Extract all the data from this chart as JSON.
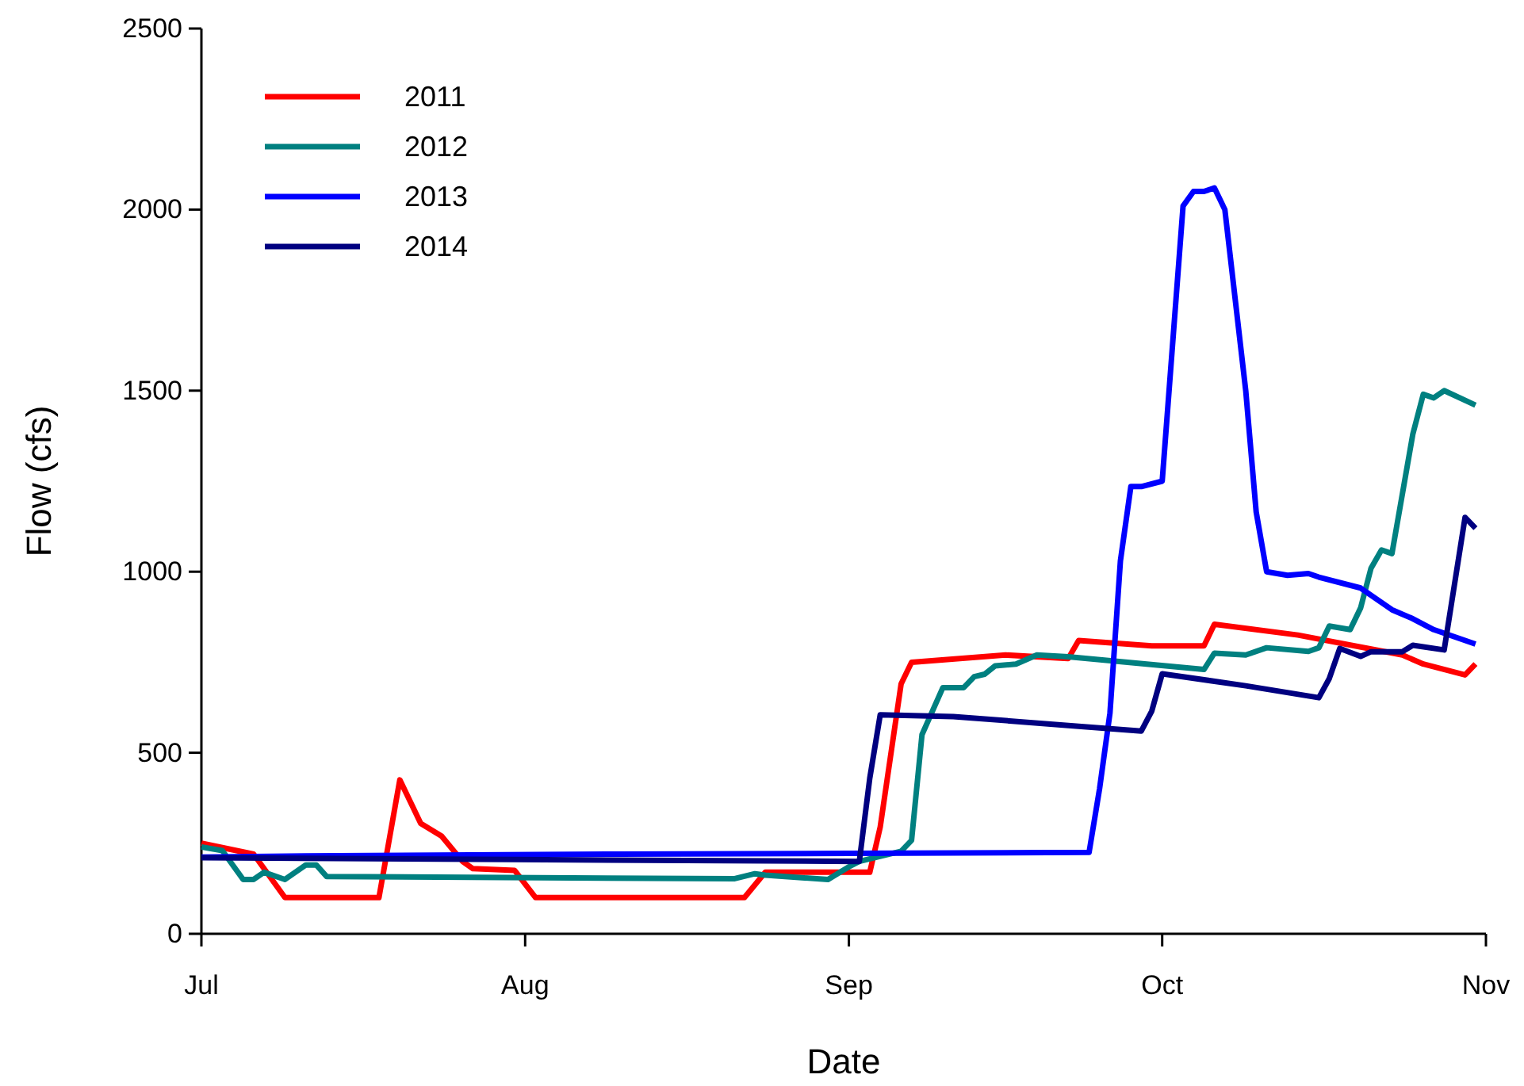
{
  "chart_data": {
    "type": "line",
    "xlabel": "Date",
    "ylabel": "Flow (cfs)",
    "xlim": [
      "--07-01",
      "--11-01"
    ],
    "xticks": [
      {
        "value": "--07-01",
        "label": "Jul"
      },
      {
        "value": "--08-01",
        "label": "Aug"
      },
      {
        "value": "--09-01",
        "label": "Sep"
      },
      {
        "value": "--10-01",
        "label": "Oct"
      },
      {
        "value": "--11-01",
        "label": "Nov"
      }
    ],
    "ylim": [
      0,
      2500
    ],
    "yticks": [
      0,
      500,
      1000,
      1500,
      2000,
      2500
    ],
    "grid": false,
    "legend": "top left",
    "marker": "none",
    "line_style": "solid",
    "series": [
      {
        "name": "2011",
        "color": "#ff0000",
        "x": [
          "--07-01",
          "--07-06",
          "--07-09",
          "--07-18",
          "--07-20",
          "--07-22",
          "--07-24",
          "--07-26",
          "--07-27",
          "--07-31",
          "--08-02",
          "--08-22",
          "--08-24",
          "--09-03",
          "--09-04",
          "--09-06",
          "--09-07",
          "--09-16",
          "--09-22",
          "--09-23",
          "--09-30",
          "--10-05",
          "--10-06",
          "--10-14",
          "--10-24",
          "--10-26",
          "--10-30",
          "--10-31"
        ],
        "values": [
          250,
          220,
          100,
          100,
          425,
          305,
          270,
          200,
          180,
          175,
          100,
          100,
          170,
          170,
          295,
          690,
          750,
          770,
          760,
          810,
          795,
          795,
          855,
          825,
          770,
          745,
          715,
          745
        ]
      },
      {
        "name": "2012",
        "color": "#008080",
        "x": [
          "--07-01",
          "--07-03",
          "--07-05",
          "--07-06",
          "--07-07",
          "--07-09",
          "--07-11",
          "--07-12",
          "--07-13",
          "--08-21",
          "--08-23",
          "--08-24",
          "--08-30",
          "--09-01",
          "--09-02",
          "--09-06",
          "--09-07",
          "--09-08",
          "--09-10",
          "--09-12",
          "--09-13",
          "--09-14",
          "--09-15",
          "--09-17",
          "--09-19",
          "--09-22",
          "--10-05",
          "--10-06",
          "--10-09",
          "--10-11",
          "--10-15",
          "--10-16",
          "--10-17",
          "--10-19",
          "--10-20",
          "--10-21",
          "--10-22",
          "--10-23",
          "--10-25",
          "--10-26",
          "--10-27",
          "--10-28",
          "--10-31"
        ],
        "values": [
          240,
          230,
          150,
          150,
          170,
          150,
          190,
          190,
          158,
          152,
          166,
          162,
          150,
          185,
          200,
          228,
          258,
          550,
          680,
          680,
          710,
          717,
          740,
          745,
          770,
          765,
          730,
          775,
          770,
          790,
          780,
          790,
          850,
          840,
          900,
          1010,
          1060,
          1050,
          1380,
          1490,
          1480,
          1500,
          1460
        ]
      },
      {
        "name": "2013",
        "color": "#0000ff",
        "x": [
          "--07-01",
          "--07-11",
          "--08-10",
          "--09-01",
          "--09-24",
          "--09-25",
          "--09-26",
          "--09-27",
          "--09-28",
          "--09-29",
          "--10-01",
          "--10-03",
          "--10-04",
          "--10-05",
          "--10-06",
          "--10-07",
          "--10-09",
          "--10-10",
          "--10-11",
          "--10-13",
          "--10-15",
          "--10-16",
          "--10-20",
          "--10-23",
          "--10-25",
          "--10-27",
          "--10-31"
        ],
        "values": [
          212,
          215,
          220,
          222,
          225,
          400,
          610,
          1030,
          1235,
          1235,
          1250,
          2010,
          2050,
          2050,
          2060,
          2000,
          1500,
          1165,
          1000,
          990,
          995,
          985,
          955,
          895,
          870,
          840,
          800
        ]
      },
      {
        "name": "2014",
        "color": "#000080",
        "x": [
          "--07-01",
          "--07-31",
          "--09-02",
          "--09-03",
          "--09-04",
          "--09-11",
          "--09-23",
          "--09-29",
          "--09-30",
          "--10-01",
          "--10-09",
          "--10-16",
          "--10-17",
          "--10-18",
          "--10-20",
          "--10-21",
          "--10-24",
          "--10-25",
          "--10-28",
          "--10-30",
          "--10-31"
        ],
        "values": [
          210,
          205,
          200,
          430,
          605,
          600,
          573,
          560,
          615,
          718,
          685,
          652,
          705,
          788,
          766,
          779,
          779,
          797,
          784,
          1150,
          1120
        ]
      }
    ]
  }
}
